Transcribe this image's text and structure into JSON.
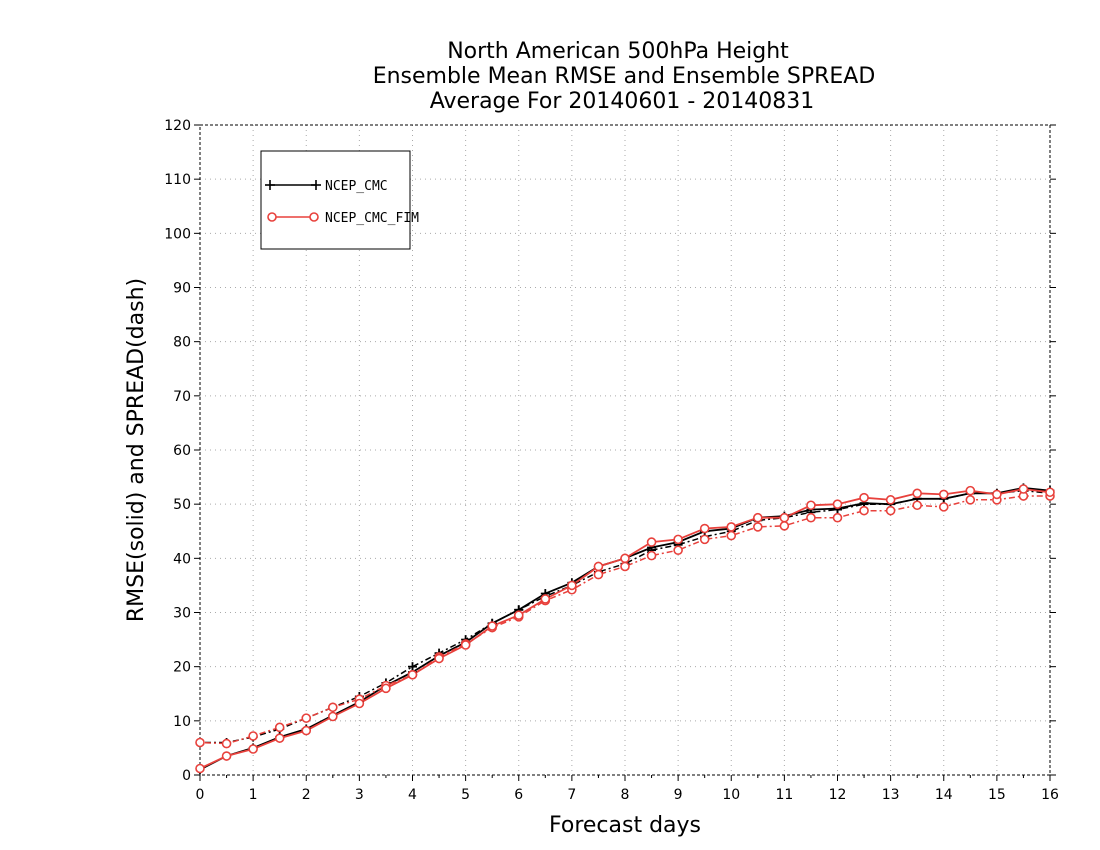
{
  "chart_data": {
    "type": "line",
    "title_lines": [
      "North American 500hPa Height",
      "Ensemble Mean RMSE and Ensemble SPREAD",
      "Average For 20140601 - 20140831"
    ],
    "xlabel": "Forecast days",
    "ylabel": "RMSE(solid) and SPREAD(dash)",
    "xlim": [
      0,
      16
    ],
    "ylim": [
      0,
      120
    ],
    "xticks": [
      0,
      1,
      2,
      3,
      4,
      5,
      6,
      7,
      8,
      9,
      10,
      11,
      12,
      13,
      14,
      15,
      16
    ],
    "yticks": [
      0,
      10,
      20,
      30,
      40,
      50,
      60,
      70,
      80,
      90,
      100,
      110,
      120
    ],
    "grid": true,
    "legend_position": "top-left",
    "x": [
      0,
      0.5,
      1,
      1.5,
      2,
      2.5,
      3,
      3.5,
      4,
      4.5,
      5,
      5.5,
      6,
      6.5,
      7,
      7.5,
      8,
      8.5,
      9,
      9.5,
      10,
      10.5,
      11,
      11.5,
      12,
      12.5,
      13,
      13.5,
      14,
      14.5,
      15,
      15.5,
      16
    ],
    "series": [
      {
        "name": "NCEP_CMC",
        "color": "#000000",
        "marker": "plus",
        "rmse": [
          1.0,
          3.5,
          5.0,
          7.0,
          8.5,
          11.0,
          13.5,
          16.5,
          19.0,
          22.0,
          24.5,
          28.0,
          30.5,
          33.5,
          35.5,
          38.5,
          40.0,
          42.0,
          43.0,
          45.0,
          45.5,
          47.5,
          47.8,
          49.0,
          49.2,
          50.2,
          50.0,
          51.0,
          51.0,
          52.0,
          52.0,
          53.0,
          52.5
        ],
        "spread": [
          6.0,
          6.0,
          7.0,
          8.5,
          10.5,
          12.5,
          14.5,
          17.0,
          20.0,
          22.5,
          25.0,
          28.0,
          30.5,
          33.0,
          35.0,
          37.5,
          39.0,
          41.5,
          42.5,
          44.0,
          45.0,
          47.0,
          47.5,
          48.5,
          49.0,
          50.0,
          50.0,
          51.0,
          51.0,
          52.0,
          52.0,
          52.5,
          52.0
        ]
      },
      {
        "name": "NCEP_CMC_FIM",
        "color": "#e8413c",
        "marker": "circle",
        "rmse": [
          1.2,
          3.5,
          4.8,
          6.8,
          8.2,
          10.8,
          13.2,
          16.0,
          18.5,
          21.5,
          24.0,
          27.5,
          29.5,
          32.5,
          35.0,
          38.5,
          40.0,
          43.0,
          43.5,
          45.5,
          45.8,
          47.5,
          47.5,
          49.8,
          50.0,
          51.2,
          50.8,
          52.0,
          51.8,
          52.5,
          51.8,
          52.8,
          52.2
        ],
        "spread": [
          6.0,
          5.8,
          7.2,
          8.8,
          10.5,
          12.5,
          14.0,
          16.5,
          18.5,
          21.8,
          24.2,
          27.2,
          29.2,
          32.2,
          34.2,
          37.0,
          38.5,
          40.5,
          41.5,
          43.5,
          44.2,
          45.8,
          46.0,
          47.5,
          47.5,
          48.8,
          48.8,
          49.8,
          49.5,
          50.8,
          50.8,
          51.5,
          51.5
        ]
      }
    ]
  }
}
